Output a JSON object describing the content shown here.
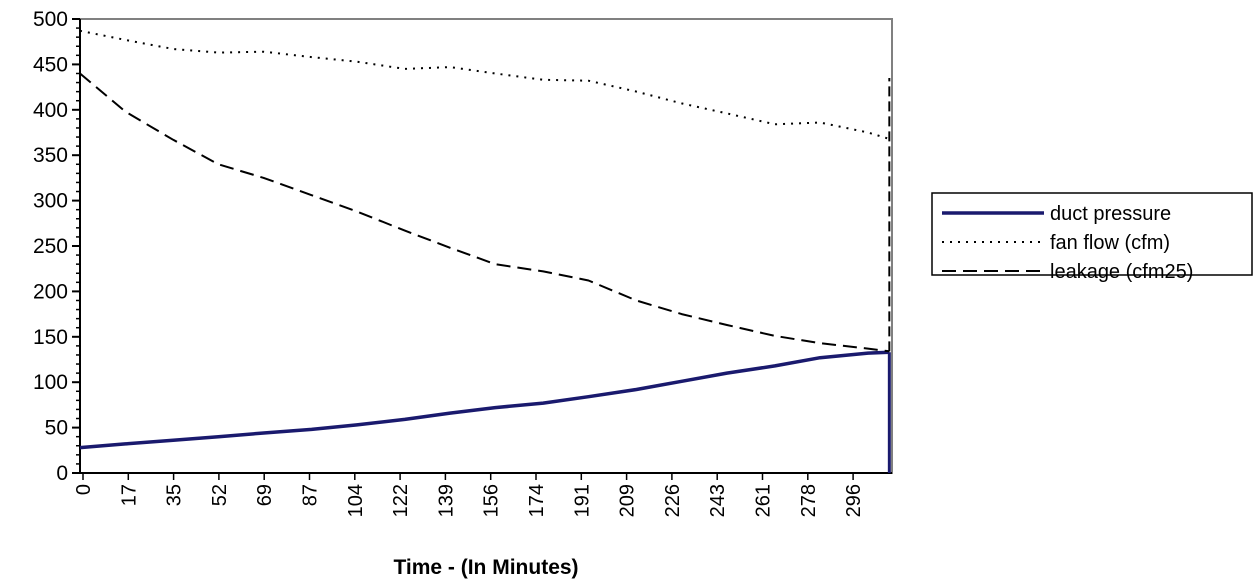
{
  "chart_data": {
    "type": "line",
    "title": "",
    "xlabel": "Time - (In Minutes)",
    "ylabel": "",
    "ylim": [
      0,
      500
    ],
    "xlim": [
      0,
      305
    ],
    "y_ticks": [
      0,
      50,
      100,
      150,
      200,
      250,
      300,
      350,
      400,
      450,
      500
    ],
    "x_ticks": [
      "0",
      "17",
      "35",
      "52",
      "69",
      "87",
      "104",
      "122",
      "139",
      "156",
      "174",
      "191",
      "209",
      "226",
      "243",
      "261",
      "278",
      "296"
    ],
    "grid": false,
    "legend_position": "right",
    "series": [
      {
        "name": "duct pressure",
        "style": "solid",
        "color": "#1a1a6e",
        "x": [
          0,
          17,
          35,
          52,
          69,
          87,
          104,
          122,
          139,
          156,
          174,
          191,
          209,
          226,
          243,
          261,
          278,
          296,
          304
        ],
        "values": [
          28,
          32,
          36,
          40,
          44,
          48,
          53,
          59,
          66,
          72,
          77,
          84,
          92,
          101,
          110,
          118,
          127,
          132,
          133
        ]
      },
      {
        "name": "fan flow (cfm)",
        "style": "dotted",
        "color": "#000000",
        "x": [
          0,
          17,
          35,
          52,
          69,
          87,
          104,
          122,
          139,
          156,
          174,
          191,
          209,
          226,
          243,
          261,
          278,
          296,
          304
        ],
        "values": [
          487,
          477,
          467,
          463,
          464,
          458,
          453,
          445,
          447,
          440,
          433,
          432,
          420,
          407,
          396,
          384,
          386,
          375,
          368
        ]
      },
      {
        "name": "leakage (cfm25)",
        "style": "dashed",
        "color": "#000000",
        "x": [
          0,
          17,
          35,
          52,
          69,
          87,
          104,
          122,
          139,
          156,
          174,
          191,
          209,
          226,
          243,
          261,
          278,
          296,
          304
        ],
        "values": [
          440,
          398,
          367,
          340,
          325,
          306,
          288,
          267,
          248,
          230,
          222,
          212,
          190,
          175,
          163,
          151,
          143,
          137,
          134
        ]
      }
    ]
  }
}
